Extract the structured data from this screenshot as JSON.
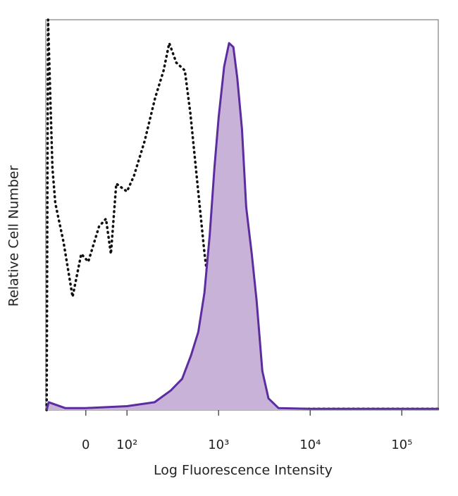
{
  "chart_data": {
    "type": "histogram-overlay",
    "xlabel": "Log Fluorescence Intensity",
    "ylabel": "Relative Cell Number",
    "xscale": "biexponential",
    "xlim": [
      -97,
      250000
    ],
    "ylim": [
      0,
      100
    ],
    "xticks": [
      0,
      {
        "value": 100,
        "label": "10²"
      },
      {
        "value": 1000,
        "label": "10³"
      },
      {
        "value": 10000,
        "label": "10⁴"
      },
      {
        "value": 100000,
        "label": "10⁵"
      }
    ],
    "series": [
      {
        "style": "dotted",
        "color": "#111111",
        "x": [
          -95,
          -91.5,
          -81,
          -74,
          -54,
          -32,
          -11,
          6,
          32,
          49,
          61,
          74,
          100,
          119,
          156,
          203,
          251,
          289,
          345,
          428,
          492,
          587,
          702,
          838,
          1000,
          1304,
          1700,
          2425,
          5000,
          250000
        ],
        "values": [
          0,
          100,
          62,
          53,
          43,
          29,
          40,
          38,
          47,
          49,
          40,
          58,
          56,
          60,
          69,
          80,
          87,
          94,
          89,
          87,
          76,
          58,
          40,
          26,
          13,
          4,
          1,
          0.3,
          0.3,
          0.3
        ]
      },
      {
        "style": "filled",
        "color": "#5b2d9e",
        "fill": "#c9b2d8",
        "x": [
          -95,
          -90,
          -50,
          0,
          100,
          200,
          300,
          400,
          500,
          600,
          700,
          800,
          900,
          1000,
          1150,
          1300,
          1450,
          1600,
          1800,
          2000,
          2300,
          2600,
          3000,
          3500,
          4500,
          10000,
          250000
        ],
        "values": [
          0,
          2,
          0.5,
          0.5,
          1,
          2,
          5,
          8,
          14,
          20,
          30,
          45,
          62,
          75,
          88,
          94,
          93,
          85,
          72,
          52,
          40,
          28,
          10,
          3,
          0.5,
          0.3,
          0.3
        ]
      }
    ]
  }
}
